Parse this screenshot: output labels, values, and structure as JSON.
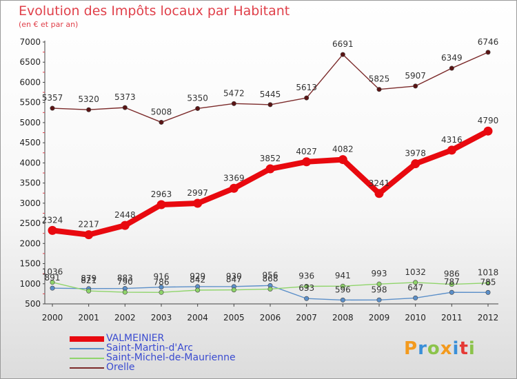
{
  "title": "Evolution des Impôts locaux par Habitant",
  "subtitle": "(en € et par an)",
  "logo": {
    "text": "Proxiti",
    "colors": [
      "#f39a1e",
      "#3a8fd8",
      "#8bc34a",
      "#f39a1e",
      "#3a8fd8",
      "#e53935",
      "#8bc34a"
    ]
  },
  "chart_data": {
    "type": "line",
    "title": "Evolution des Impôts locaux par Habitant",
    "subtitle": "(en € et par an)",
    "xlabel": "",
    "ylabel": "",
    "x": [
      "2000",
      "2001",
      "2002",
      "2003",
      "2004",
      "2005",
      "2006",
      "2007",
      "2008",
      "2009",
      "2010",
      "2011",
      "2012"
    ],
    "ylim": [
      500,
      7000
    ],
    "yticks": [
      500,
      1000,
      1500,
      2000,
      2500,
      3000,
      3500,
      4000,
      4500,
      5000,
      5500,
      6000,
      6500,
      7000
    ],
    "grid": false,
    "legend_position": "bottom-left",
    "series": [
      {
        "name": "VALMEINIER",
        "color": "#e8090f",
        "emphasis": true,
        "values": [
          2324,
          2217,
          2448,
          2963,
          2997,
          3369,
          3852,
          4027,
          4082,
          3241,
          3978,
          4316,
          4790
        ],
        "labels": [
          "2324",
          "2217",
          "2448",
          "2963",
          "2997",
          "3369",
          "3852",
          "4027",
          "4082",
          "3241",
          "3978",
          "4316",
          "4790"
        ]
      },
      {
        "name": "Saint-Martin-d'Arc",
        "color": "#5b8fc9",
        "emphasis": false,
        "values": [
          891,
          879,
          883,
          916,
          929,
          930,
          956,
          633,
          596,
          598,
          647,
          787,
          785
        ],
        "labels": [
          "891",
          "879",
          "883",
          "916",
          "929",
          "930",
          "956",
          "633",
          "596",
          "598",
          "647",
          "787",
          "785"
        ]
      },
      {
        "name": "Saint-Michel-de-Maurienne",
        "color": "#8fd46a",
        "emphasis": false,
        "values": [
          1036,
          821,
          790,
          786,
          842,
          847,
          868,
          936,
          941,
          993,
          1032,
          986,
          1018
        ],
        "labels": [
          "1036",
          "821",
          "790",
          "786",
          "842",
          "847",
          "868",
          "936",
          "941",
          "993",
          "1032",
          "986",
          "1018"
        ]
      },
      {
        "name": "Orelle",
        "color": "#7b2a2a",
        "emphasis": false,
        "values": [
          5357,
          5320,
          5373,
          5008,
          5350,
          5472,
          5445,
          5613,
          6691,
          5825,
          5907,
          6349,
          6746
        ],
        "labels": [
          "5357",
          "5320",
          "5373",
          "5008",
          "5350",
          "5472",
          "5445",
          "5613",
          "6691",
          "5825",
          "5907",
          "6349",
          "6746"
        ]
      }
    ]
  }
}
